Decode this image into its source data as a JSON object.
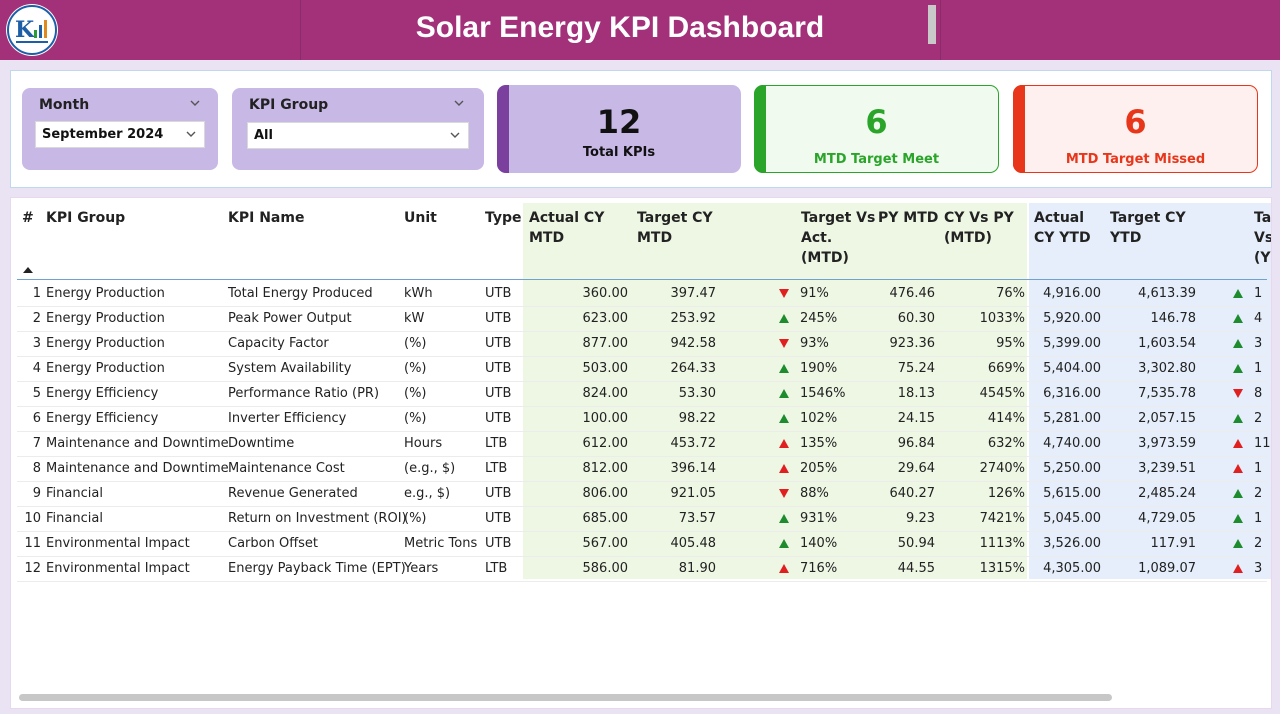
{
  "header": {
    "title": "Solar Energy KPI Dashboard",
    "logo_icon": "kpi-logo-icon",
    "bg_color": "#a3317a"
  },
  "filters": {
    "month": {
      "label": "Month",
      "value": "September 2024"
    },
    "kpi_group": {
      "label": "KPI Group",
      "value": "All"
    }
  },
  "cards": {
    "total": {
      "value": "12",
      "label": "Total KPIs",
      "color": "#7b3f9e"
    },
    "meet": {
      "value": "6",
      "label": "MTD Target Meet",
      "color": "#2aa52a"
    },
    "missed": {
      "value": "6",
      "label": "MTD Target Missed",
      "color": "#e8361b"
    }
  },
  "table": {
    "headers": {
      "num": "#",
      "group": "KPI Group",
      "name": "KPI Name",
      "unit": "Unit",
      "type": "Type",
      "actual_mtd": [
        "Actual CY",
        "MTD"
      ],
      "target_mtd": [
        "Target CY",
        "MTD"
      ],
      "tva_mtd": [
        "Target Vs",
        "Act.",
        "(MTD)"
      ],
      "py_mtd": "PY MTD",
      "cyvpy_mtd": [
        "CY Vs PY",
        "(MTD)"
      ],
      "actual_ytd": [
        "Actual",
        "CY YTD"
      ],
      "target_ytd": [
        "Target CY",
        "YTD"
      ],
      "tva_ytd": [
        "Ta",
        "Vs",
        "(Y"
      ]
    },
    "rows": [
      {
        "num": "1",
        "group": "Energy Production",
        "name": "Total Energy Produced",
        "unit": "kWh",
        "type": "UTB",
        "actual_mtd": "360.00",
        "target_mtd": "397.47",
        "mtd_icon": "down-red",
        "tva_mtd": "91%",
        "py_mtd": "476.46",
        "cyvpy_mtd": "76%",
        "actual_ytd": "4,916.00",
        "target_ytd": "4,613.39",
        "ytd_icon": "up-green",
        "tva_ytd": "1"
      },
      {
        "num": "2",
        "group": "Energy Production",
        "name": "Peak Power Output",
        "unit": "kW",
        "type": "UTB",
        "actual_mtd": "623.00",
        "target_mtd": "253.92",
        "mtd_icon": "up-green",
        "tva_mtd": "245%",
        "py_mtd": "60.30",
        "cyvpy_mtd": "1033%",
        "actual_ytd": "5,920.00",
        "target_ytd": "146.78",
        "ytd_icon": "up-green",
        "tva_ytd": "4"
      },
      {
        "num": "3",
        "group": "Energy Production",
        "name": "Capacity Factor",
        "unit": " (%)",
        "type": "UTB",
        "actual_mtd": "877.00",
        "target_mtd": "942.58",
        "mtd_icon": "down-red",
        "tva_mtd": "93%",
        "py_mtd": "923.36",
        "cyvpy_mtd": "95%",
        "actual_ytd": "5,399.00",
        "target_ytd": "1,603.54",
        "ytd_icon": "up-green",
        "tva_ytd": "3"
      },
      {
        "num": "4",
        "group": "Energy Production",
        "name": "System Availability",
        "unit": " (%)",
        "type": "UTB",
        "actual_mtd": "503.00",
        "target_mtd": "264.33",
        "mtd_icon": "up-green",
        "tva_mtd": "190%",
        "py_mtd": "75.24",
        "cyvpy_mtd": "669%",
        "actual_ytd": "5,404.00",
        "target_ytd": "3,302.80",
        "ytd_icon": "up-green",
        "tva_ytd": "1"
      },
      {
        "num": "5",
        "group": "Energy Efficiency",
        "name": "Performance Ratio (PR)",
        "unit": " (%)",
        "type": "UTB",
        "actual_mtd": "824.00",
        "target_mtd": "53.30",
        "mtd_icon": "up-green",
        "tva_mtd": "1546%",
        "py_mtd": "18.13",
        "cyvpy_mtd": "4545%",
        "actual_ytd": "6,316.00",
        "target_ytd": "7,535.78",
        "ytd_icon": "down-red",
        "tva_ytd": "8"
      },
      {
        "num": "6",
        "group": "Energy Efficiency",
        "name": "Inverter Efficiency",
        "unit": " (%)",
        "type": "UTB",
        "actual_mtd": "100.00",
        "target_mtd": "98.22",
        "mtd_icon": "up-green",
        "tva_mtd": "102%",
        "py_mtd": "24.15",
        "cyvpy_mtd": "414%",
        "actual_ytd": "5,281.00",
        "target_ytd": "2,057.15",
        "ytd_icon": "up-green",
        "tva_ytd": "2"
      },
      {
        "num": "7",
        "group": "Maintenance and Downtime",
        "name": "Downtime",
        "unit": "Hours",
        "type": "LTB",
        "actual_mtd": "612.00",
        "target_mtd": "453.72",
        "mtd_icon": "up-red",
        "tva_mtd": "135%",
        "py_mtd": "96.84",
        "cyvpy_mtd": "632%",
        "actual_ytd": "4,740.00",
        "target_ytd": "3,973.59",
        "ytd_icon": "up-red",
        "tva_ytd": "11"
      },
      {
        "num": "8",
        "group": "Maintenance and Downtime",
        "name": "Maintenance Cost",
        "unit": "(e.g., $)",
        "type": "LTB",
        "actual_mtd": "812.00",
        "target_mtd": "396.14",
        "mtd_icon": "up-red",
        "tva_mtd": "205%",
        "py_mtd": "29.64",
        "cyvpy_mtd": "2740%",
        "actual_ytd": "5,250.00",
        "target_ytd": "3,239.51",
        "ytd_icon": "up-red",
        "tva_ytd": "1"
      },
      {
        "num": "9",
        "group": "Financial",
        "name": "Revenue Generated",
        "unit": "e.g., $)",
        "type": "UTB",
        "actual_mtd": "806.00",
        "target_mtd": "921.05",
        "mtd_icon": "down-red",
        "tva_mtd": "88%",
        "py_mtd": "640.27",
        "cyvpy_mtd": "126%",
        "actual_ytd": "5,615.00",
        "target_ytd": "2,485.24",
        "ytd_icon": "up-green",
        "tva_ytd": "2"
      },
      {
        "num": "10",
        "group": "Financial",
        "name": "Return on Investment (ROI)",
        "unit": " (%)",
        "type": "UTB",
        "actual_mtd": "685.00",
        "target_mtd": "73.57",
        "mtd_icon": "up-green",
        "tva_mtd": "931%",
        "py_mtd": "9.23",
        "cyvpy_mtd": "7421%",
        "actual_ytd": "5,045.00",
        "target_ytd": "4,729.05",
        "ytd_icon": "up-green",
        "tva_ytd": "1"
      },
      {
        "num": "11",
        "group": "Environmental Impact",
        "name": "Carbon Offset",
        "unit": "Metric Tons",
        "type": "UTB",
        "actual_mtd": "567.00",
        "target_mtd": "405.48",
        "mtd_icon": "up-green",
        "tva_mtd": "140%",
        "py_mtd": "50.94",
        "cyvpy_mtd": "1113%",
        "actual_ytd": "3,526.00",
        "target_ytd": "117.91",
        "ytd_icon": "up-green",
        "tva_ytd": "2"
      },
      {
        "num": "12",
        "group": "Environmental Impact",
        "name": "Energy Payback Time (EPT)",
        "unit": "Years",
        "type": "LTB",
        "actual_mtd": "586.00",
        "target_mtd": "81.90",
        "mtd_icon": "up-red",
        "tva_mtd": "716%",
        "py_mtd": "44.55",
        "cyvpy_mtd": "1315%",
        "actual_ytd": "4,305.00",
        "target_ytd": "1,089.07",
        "ytd_icon": "up-red",
        "tva_ytd": "3"
      }
    ]
  },
  "colors": {
    "mtd_band": "#eef7e4",
    "ytd_band": "#e5eefa",
    "up_green": "#1e8c2e",
    "red": "#e02020"
  }
}
